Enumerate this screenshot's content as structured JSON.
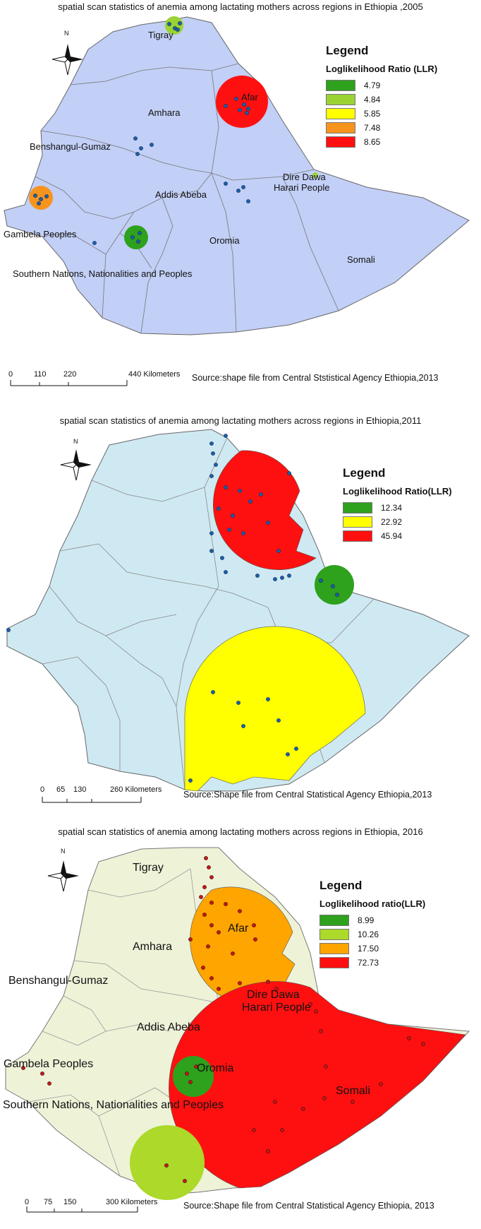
{
  "panels": [
    {
      "year": "2005",
      "title": "spatial scan statistics of anemia among lactating mothers across regions in Ethiopia ,2005",
      "legend_title": "Legend",
      "legend_subtitle": "Loglikelihood Ratio (LLR)",
      "legend": [
        {
          "label": "4.79",
          "color": "#2ea11d"
        },
        {
          "label": "4.84",
          "color": "#9bd234"
        },
        {
          "label": "5.85",
          "color": "#ffff00"
        },
        {
          "label": "7.48",
          "color": "#f7941d"
        },
        {
          "label": "8.65",
          "color": "#ff1010"
        }
      ],
      "scale_labels": [
        "0",
        "110",
        "220",
        "440 Kilometers"
      ],
      "source": "Source:shape file from Central Ststistical Agency Ethiopia,2013",
      "regions": [
        "Tigray",
        "Amhara",
        "Afar",
        "Benshangul-Gumaz",
        "Dire Dawa",
        "Harari People",
        "Addis Abeba",
        "Gambela Peoples",
        "Oromia",
        "Somali",
        "Southern Nations, Nationalities and Peoples"
      ],
      "map_fill": "#c2cff6"
    },
    {
      "year": "2011",
      "title": "spatial scan statistics of anemia among lactating mothers across regions  in Ethiopia,2011",
      "legend_title": "Legend",
      "legend_subtitle": "Loglikelihood Ratio(LLR)",
      "legend": [
        {
          "label": "12.34",
          "color": "#2ea11d"
        },
        {
          "label": "22.92",
          "color": "#ffff00"
        },
        {
          "label": "45.94",
          "color": "#ff1010"
        }
      ],
      "scale_labels": [
        "0",
        "65",
        "130",
        "260 Kilometers"
      ],
      "source": "Source:Shape file from Central Statistical Agency Ethiopia,2013",
      "regions": [],
      "map_fill": "#cfe9f2"
    },
    {
      "year": "2016",
      "title": "spatial scan statistics of anemia among lactating mothers across regions in Ethiopia, 2016",
      "legend_title": "Legend",
      "legend_subtitle": "Loglikelihood ratio(LLR)",
      "legend": [
        {
          "label": "8.99",
          "color": "#2ea11d"
        },
        {
          "label": "10.26",
          "color": "#acd92a"
        },
        {
          "label": "17.50",
          "color": "#ffa500"
        },
        {
          "label": "72.73",
          "color": "#ff1010"
        }
      ],
      "scale_labels": [
        "0",
        "75",
        "150",
        "300 Kilometers"
      ],
      "source": "Source:Shape file from Central Statistical Agency Ethiopia, 2013",
      "regions": [
        "Tigray",
        "Afar",
        "Amhara",
        "Benshangul-Gumaz",
        "Dire Dawa",
        "Harari People",
        "Addis Abeba",
        "Gambela Peoples",
        "Oromia",
        "Somali",
        "Southern Nations, Nationalities and Peoples"
      ],
      "map_fill": "#eef3d8"
    }
  ],
  "north_label": "N"
}
